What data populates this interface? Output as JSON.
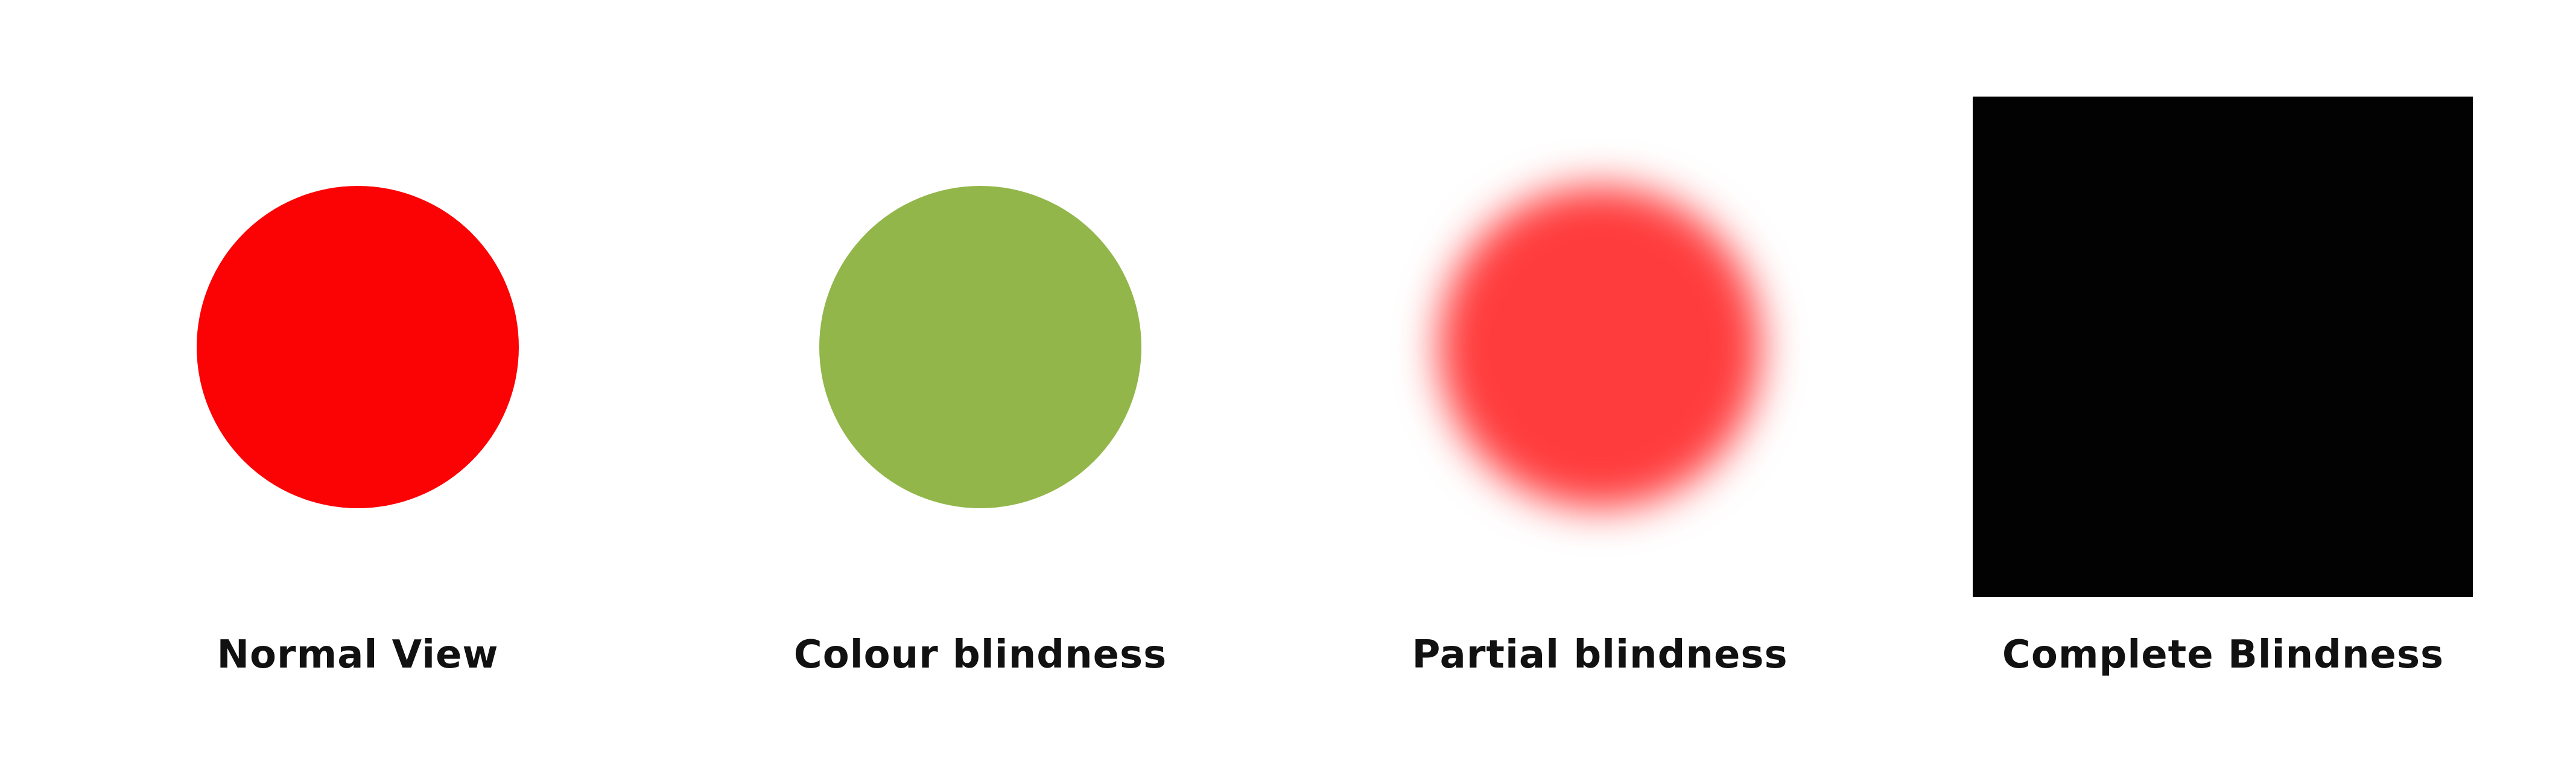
{
  "panels": [
    {
      "label": "Normal View",
      "color": "#fb0204",
      "shape": "circle",
      "blurred": false
    },
    {
      "label": "Colour blindness",
      "color": "#92b64a",
      "shape": "circle",
      "blurred": false
    },
    {
      "label": "Partial blindness",
      "color": "#ff3c3d",
      "shape": "circle",
      "blurred": true
    },
    {
      "label": "Complete Blindness",
      "color": "#020202",
      "shape": "square",
      "blurred": false
    }
  ]
}
